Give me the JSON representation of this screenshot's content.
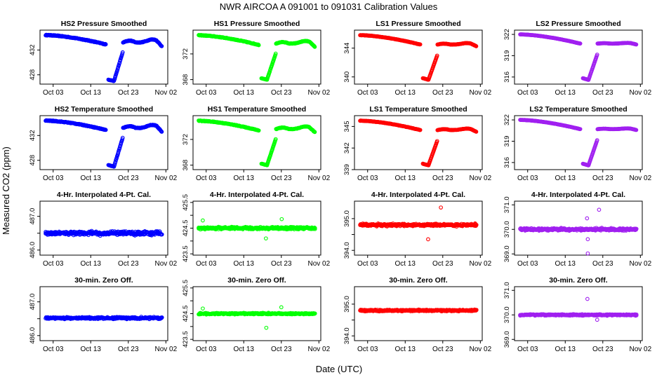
{
  "page": {
    "title": "NWR    AIRCOA A    091001 to 091031    Calibration Values",
    "xlabel": "Date (UTC)",
    "ylabel": "Measured CO2 (ppm)"
  },
  "x_axis": {
    "range": [
      -1.5,
      32.5
    ],
    "ticks": [
      2,
      12,
      22,
      32
    ],
    "tick_labels": [
      "Oct 03",
      "Oct 13",
      "Oct 23",
      "Nov 02"
    ]
  },
  "colors": {
    "HS2": "#0000ff",
    "HS1": "#00ff00",
    "LS1": "#ff0000",
    "LS2": "#a020f0"
  },
  "chart_data": [
    {
      "type": "scatter",
      "title": "HS2 Pressure Smoothed",
      "color": "#0000ff",
      "row": 0,
      "col": 0,
      "ylim": [
        426.5,
        435.2
      ],
      "yticks": [
        428,
        432
      ],
      "ytick_labels": [
        "428",
        "432"
      ],
      "series": "smooth",
      "params": {
        "hi": 434.4,
        "drop": 1.5,
        "dip": 427.0,
        "ret": 433.2,
        "osc": 0.5
      }
    },
    {
      "type": "scatter",
      "title": "HS1 Pressure Smoothed",
      "color": "#00ff00",
      "row": 0,
      "col": 1,
      "ylim": [
        367.3,
        375.7
      ],
      "yticks": [
        368,
        372
      ],
      "ytick_labels": [
        "368",
        "372"
      ],
      "series": "smooth",
      "params": {
        "hi": 374.9,
        "drop": 1.5,
        "dip": 368.0,
        "ret": 373.6,
        "osc": 0.4
      }
    },
    {
      "type": "scatter",
      "title": "LS1 Pressure Smoothed",
      "color": "#ff0000",
      "row": 0,
      "col": 2,
      "ylim": [
        339.0,
        346.5
      ],
      "yticks": [
        340,
        344
      ],
      "ytick_labels": [
        "340",
        "344"
      ],
      "series": "smooth",
      "params": {
        "hi": 345.8,
        "drop": 1.3,
        "dip": 339.6,
        "ret": 344.5,
        "osc": 0.2
      }
    },
    {
      "type": "scatter",
      "title": "LS2 Pressure Smoothed",
      "color": "#a020f0",
      "row": 0,
      "col": 3,
      "ylim": [
        315.0,
        322.6
      ],
      "yticks": [
        316,
        319,
        322
      ],
      "ytick_labels": [
        "316",
        "319",
        "322"
      ],
      "series": "smooth",
      "params": {
        "hi": 322.0,
        "drop": 1.3,
        "dip": 315.6,
        "ret": 320.7,
        "osc": 0.1
      }
    },
    {
      "type": "scatter",
      "title": "HS2 Temperature Smoothed",
      "color": "#0000ff",
      "row": 1,
      "col": 0,
      "ylim": [
        426.5,
        435.2
      ],
      "yticks": [
        428,
        432
      ],
      "ytick_labels": [
        "428",
        "432"
      ],
      "series": "smooth",
      "params": {
        "hi": 434.4,
        "drop": 1.5,
        "dip": 427.0,
        "ret": 433.2,
        "osc": 0.5
      }
    },
    {
      "type": "scatter",
      "title": "HS1 Temperature Smoothed",
      "color": "#00ff00",
      "row": 1,
      "col": 1,
      "ylim": [
        367.3,
        375.7
      ],
      "yticks": [
        368,
        372
      ],
      "ytick_labels": [
        "368",
        "372"
      ],
      "series": "smooth",
      "params": {
        "hi": 374.9,
        "drop": 1.5,
        "dip": 368.0,
        "ret": 373.6,
        "osc": 0.4
      }
    },
    {
      "type": "scatter",
      "title": "LS1 Temperature Smoothed",
      "color": "#ff0000",
      "row": 1,
      "col": 2,
      "ylim": [
        339.0,
        346.5
      ],
      "yticks": [
        339,
        342,
        345
      ],
      "ytick_labels": [
        "339",
        "342",
        "345"
      ],
      "series": "smooth",
      "params": {
        "hi": 345.8,
        "drop": 1.3,
        "dip": 339.6,
        "ret": 344.5,
        "osc": 0.2
      }
    },
    {
      "type": "scatter",
      "title": "LS2 Temperature Smoothed",
      "color": "#a020f0",
      "row": 1,
      "col": 3,
      "ylim": [
        315.0,
        322.6
      ],
      "yticks": [
        316,
        319,
        322
      ],
      "ytick_labels": [
        "316",
        "319",
        "322"
      ],
      "series": "smooth",
      "params": {
        "hi": 322.0,
        "drop": 1.3,
        "dip": 315.6,
        "ret": 320.7,
        "osc": 0.1
      }
    },
    {
      "type": "scatter",
      "title": "4-Hr. Interpolated 4-Pt. Cal.",
      "color": "#0000ff",
      "row": 2,
      "col": 0,
      "ylim": [
        485.85,
        487.45
      ],
      "yticks": [
        486.0,
        486.5,
        487.0
      ],
      "ytick_labels": [
        "486.0",
        "",
        "487.0"
      ],
      "series": "flat",
      "params": {
        "base": 486.5,
        "noise": 0.06
      },
      "outliers": []
    },
    {
      "type": "scatter",
      "title": "4-Hr. Interpolated 4-Pt. Cal.",
      "color": "#00ff00",
      "row": 2,
      "col": 1,
      "ylim": [
        423.45,
        425.55
      ],
      "yticks": [
        423.5,
        424.0,
        424.5,
        425.0,
        425.5
      ],
      "ytick_labels": [
        "423.5",
        "",
        "424.5",
        "",
        "425.5"
      ],
      "series": "flat",
      "params": {
        "base": 424.5,
        "noise": 0.05
      },
      "outliers": [
        [
          1.1,
          424.8
        ],
        [
          17.9,
          424.1
        ],
        [
          22.1,
          424.85
        ]
      ]
    },
    {
      "type": "scatter",
      "title": "4-Hr. Interpolated 4-Pt. Cal.",
      "color": "#ff0000",
      "row": 2,
      "col": 2,
      "ylim": [
        393.85,
        395.55
      ],
      "yticks": [
        394.0,
        394.5,
        395.0
      ],
      "ytick_labels": [
        "394.0",
        "",
        "395.0"
      ],
      "series": "flat",
      "params": {
        "base": 394.8,
        "noise": 0.04
      },
      "outliers": [
        [
          18.1,
          394.35
        ],
        [
          21.5,
          395.35
        ]
      ]
    },
    {
      "type": "scatter",
      "title": "4-Hr. Interpolated 4-Pt. Cal.",
      "color": "#a020f0",
      "row": 2,
      "col": 3,
      "ylim": [
        368.95,
        371.15
      ],
      "yticks": [
        369.0,
        370.0,
        371.0
      ],
      "ytick_labels": [
        "369.0",
        "370.0",
        "371.0"
      ],
      "series": "flat",
      "params": {
        "base": 370.0,
        "noise": 0.05
      },
      "outliers": [
        [
          17.8,
          370.45
        ],
        [
          18.0,
          369.6
        ],
        [
          18.0,
          369.02
        ],
        [
          21.0,
          370.8
        ]
      ]
    },
    {
      "type": "scatter",
      "title": "30-min. Zero Off.",
      "color": "#0000ff",
      "row": 3,
      "col": 0,
      "ylim": [
        485.85,
        487.45
      ],
      "yticks": [
        486.0,
        486.5,
        487.0
      ],
      "ytick_labels": [
        "486.0",
        "",
        "487.0"
      ],
      "series": "flat",
      "params": {
        "base": 486.52,
        "noise": 0.03
      },
      "outliers": []
    },
    {
      "type": "scatter",
      "title": "30-min. Zero Off.",
      "color": "#00ff00",
      "row": 3,
      "col": 1,
      "ylim": [
        423.45,
        425.55
      ],
      "yticks": [
        423.5,
        424.0,
        424.5,
        425.0,
        425.5
      ],
      "ytick_labels": [
        "423.5",
        "",
        "424.5",
        "",
        "425.5"
      ],
      "series": "flat",
      "params": {
        "base": 424.5,
        "noise": 0.03
      },
      "outliers": [
        [
          1.1,
          424.7
        ],
        [
          18.0,
          423.95
        ],
        [
          22.0,
          424.75
        ]
      ]
    },
    {
      "type": "scatter",
      "title": "30-min. Zero Off.",
      "color": "#ff0000",
      "row": 3,
      "col": 2,
      "ylim": [
        393.85,
        395.55
      ],
      "yticks": [
        394.0,
        394.5,
        395.0
      ],
      "ytick_labels": [
        "394.0",
        "",
        "395.0"
      ],
      "series": "flat",
      "params": {
        "base": 394.8,
        "noise": 0.025
      },
      "outliers": []
    },
    {
      "type": "scatter",
      "title": "30-min. Zero Off.",
      "color": "#a020f0",
      "row": 3,
      "col": 3,
      "ylim": [
        368.95,
        371.15
      ],
      "yticks": [
        369.0,
        370.0,
        371.0
      ],
      "ytick_labels": [
        "369.0",
        "370.0",
        "371.0"
      ],
      "series": "flat",
      "params": {
        "base": 370.0,
        "noise": 0.03
      },
      "outliers": [
        [
          17.9,
          370.65
        ],
        [
          20.5,
          369.8
        ]
      ]
    }
  ]
}
